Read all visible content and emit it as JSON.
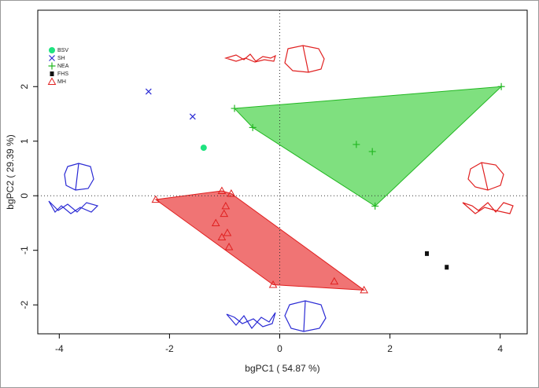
{
  "chart_data": {
    "type": "scatter",
    "x_label": "bgPC1 ( 54.87 %)",
    "y_label": "bgPC2 ( 29.39 %)",
    "xlim": [
      -4.39,
      4.49
    ],
    "ylim": [
      -2.53,
      3.4
    ],
    "xticks": [
      -4,
      -2,
      0,
      2,
      4
    ],
    "yticks": [
      -2,
      -1,
      0,
      1,
      2
    ],
    "zero_lines": true,
    "legend": "top-left",
    "series": [
      {
        "name": "BSV",
        "color": "#1ee37f",
        "marker": "circle",
        "x": [
          -1.38
        ],
        "y": [
          0.88
        ]
      },
      {
        "name": "SH",
        "color": "#2a2ad4",
        "marker": "cross",
        "x": [
          -2.38,
          -1.58
        ],
        "y": [
          1.91,
          1.45
        ]
      },
      {
        "name": "NEA",
        "color": "#22b722",
        "marker": "plus",
        "hull": true,
        "hull_color": "#7fe07f",
        "x": [
          -0.82,
          -0.49,
          4.02,
          1.39,
          1.68,
          1.73
        ],
        "y": [
          1.6,
          1.25,
          2.0,
          0.94,
          0.81,
          -0.19
        ]
      },
      {
        "name": "FHS",
        "color": "#111111",
        "marker": "square",
        "x": [
          2.67,
          3.03
        ],
        "y": [
          -1.06,
          -1.31
        ]
      },
      {
        "name": "MH",
        "color": "#e02020",
        "marker": "triangle",
        "hull": true,
        "hull_color": "#f07474",
        "x": [
          -2.25,
          -1.05,
          -0.88,
          -0.98,
          -1.01,
          -1.16,
          -0.95,
          -1.05,
          -0.92,
          -0.12,
          0.99,
          1.53
        ],
        "y": [
          -0.07,
          0.09,
          0.04,
          -0.19,
          -0.33,
          -0.5,
          -0.68,
          -0.76,
          -0.94,
          -1.63,
          -1.57,
          -1.73
        ]
      }
    ]
  }
}
